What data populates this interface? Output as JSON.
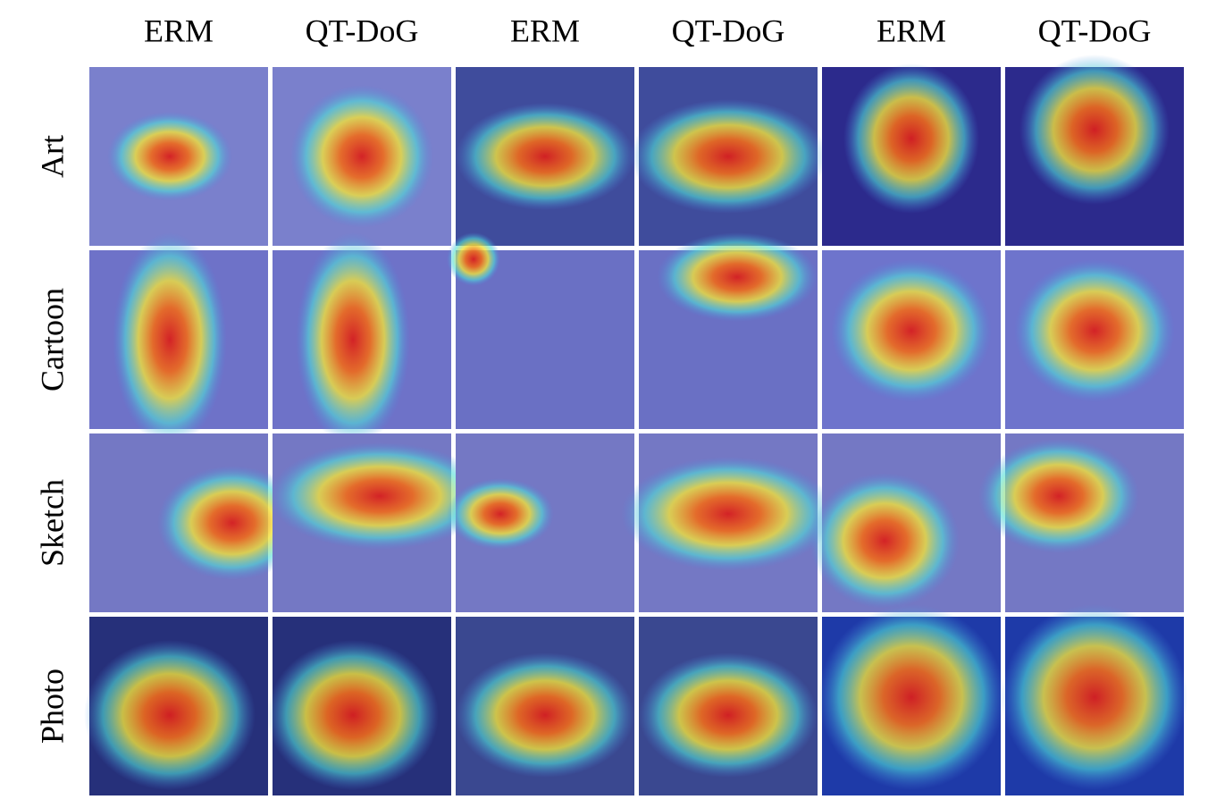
{
  "column_headers": [
    "ERM",
    "QT-DoG",
    "ERM",
    "QT-DoG",
    "ERM",
    "QT-DoG"
  ],
  "row_labels": [
    "Art",
    "Cartoon",
    "Sketch",
    "Photo"
  ]
}
